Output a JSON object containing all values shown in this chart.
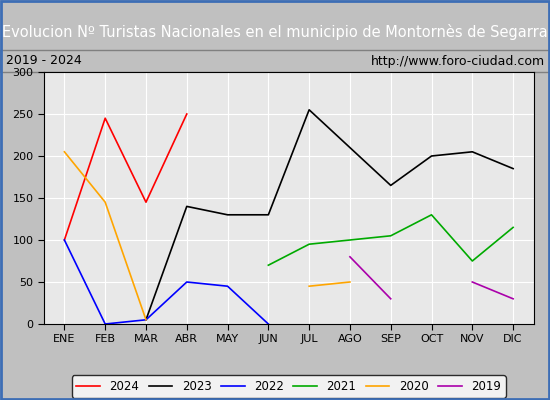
{
  "title": "Evolucion Nº Turistas Nacionales en el municipio de Montornès de Segarra",
  "subtitle_left": "2019 - 2024",
  "subtitle_right": "http://www.foro-ciudad.com",
  "title_bg": "#3d6eb5",
  "title_color": "#ffffff",
  "subtitle_bg": "#ffffff",
  "subtitle_color": "#000000",
  "plot_bg": "#e8e8e8",
  "months": [
    "ENE",
    "FEB",
    "MAR",
    "ABR",
    "MAY",
    "JUN",
    "JUL",
    "AGO",
    "SEP",
    "OCT",
    "NOV",
    "DIC"
  ],
  "ylim": [
    0,
    300
  ],
  "yticks": [
    0,
    50,
    100,
    150,
    200,
    250,
    300
  ],
  "series": {
    "2024": {
      "color": "#ff0000",
      "data": [
        100,
        245,
        145,
        250,
        null,
        null,
        null,
        null,
        null,
        null,
        null,
        null
      ]
    },
    "2023": {
      "color": "#000000",
      "data": [
        null,
        null,
        5,
        140,
        130,
        130,
        255,
        210,
        165,
        200,
        205,
        185
      ]
    },
    "2022": {
      "color": "#0000ff",
      "data": [
        100,
        0,
        5,
        50,
        45,
        0,
        null,
        null,
        null,
        null,
        null,
        null
      ]
    },
    "2021": {
      "color": "#00aa00",
      "data": [
        null,
        null,
        null,
        null,
        null,
        70,
        95,
        100,
        105,
        130,
        75,
        115
      ]
    },
    "2020": {
      "color": "#ffa500",
      "data": [
        205,
        145,
        5,
        null,
        null,
        null,
        45,
        50,
        null,
        null,
        null,
        null
      ]
    },
    "2019": {
      "color": "#aa00aa",
      "data": [
        null,
        null,
        null,
        null,
        null,
        null,
        null,
        80,
        30,
        null,
        50,
        30
      ]
    }
  },
  "legend_order": [
    "2024",
    "2023",
    "2022",
    "2021",
    "2020",
    "2019"
  ]
}
